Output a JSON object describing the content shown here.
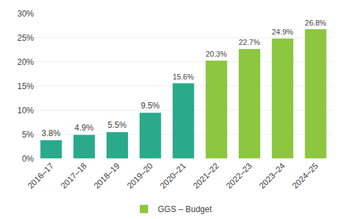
{
  "chart_data": {
    "type": "bar",
    "categories": [
      "2016–17",
      "2017–18",
      "2018–19",
      "2019–20",
      "2020–21",
      "2021–22",
      "2022–23",
      "2023–24",
      "2024–25"
    ],
    "series": [
      {
        "name": "GGS – Budget",
        "color": "#8dc63f",
        "colors": [
          "#2aaa8a",
          "#2aaa8a",
          "#2aaa8a",
          "#2aaa8a",
          "#2aaa8a",
          "#8dc63f",
          "#8dc63f",
          "#8dc63f",
          "#8dc63f"
        ],
        "values": [
          3.8,
          4.9,
          5.5,
          9.5,
          15.6,
          20.3,
          22.7,
          24.9,
          26.8
        ],
        "value_labels": [
          "3.8%",
          "4.9%",
          "5.5%",
          "9.5%",
          "15.6%",
          "20.3%",
          "22.7%",
          "24.9%",
          "26.8%"
        ]
      }
    ],
    "ylim": [
      0,
      30
    ],
    "yticks": [
      {
        "value": 0,
        "label": "0%"
      },
      {
        "value": 5,
        "label": "5%"
      },
      {
        "value": 10,
        "label": "10%"
      },
      {
        "value": 15,
        "label": "15%"
      },
      {
        "value": 20,
        "label": "20%"
      },
      {
        "value": 25,
        "label": "25%"
      },
      {
        "value": 30,
        "label": "30%"
      }
    ],
    "grid": true,
    "legend": "bottom",
    "data_labels": true
  }
}
